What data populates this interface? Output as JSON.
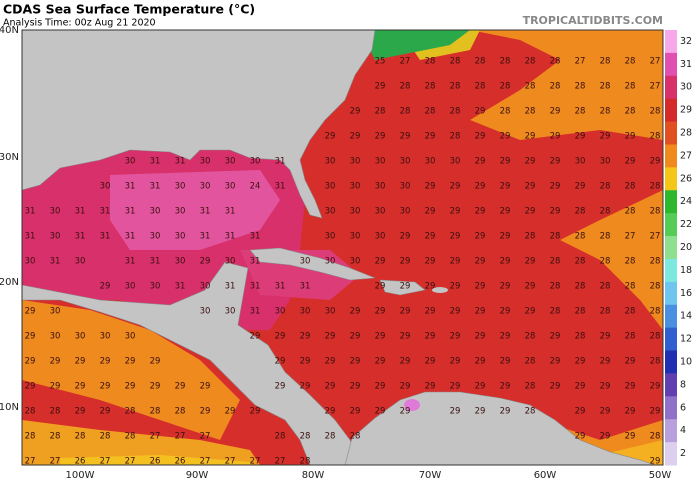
{
  "header": {
    "title": "CDAS Sea Surface Temperature (°C)",
    "subtitle": "Analysis Time: 00z Aug 21 2020",
    "site": "TROPICALTIDBITS.COM"
  },
  "map": {
    "lat_labels": [
      "40N",
      "30N",
      "20N",
      "10N"
    ],
    "lon_labels": [
      "100W",
      "90W",
      "80W",
      "70W",
      "60W",
      "50W"
    ],
    "grid": [
      [
        null,
        null,
        null,
        null,
        null,
        null,
        null,
        null,
        null,
        null,
        null,
        null,
        null,
        null,
        25,
        27,
        28,
        28,
        28,
        28,
        28,
        28,
        27,
        28,
        28,
        27
      ],
      [
        null,
        null,
        null,
        null,
        null,
        null,
        null,
        null,
        null,
        null,
        null,
        null,
        null,
        null,
        29,
        28,
        28,
        28,
        28,
        28,
        28,
        28,
        28,
        28,
        28,
        27
      ],
      [
        null,
        null,
        null,
        null,
        null,
        null,
        null,
        null,
        null,
        null,
        null,
        null,
        null,
        29,
        28,
        28,
        28,
        28,
        29,
        28,
        28,
        29,
        28,
        28,
        28,
        28
      ],
      [
        null,
        null,
        null,
        null,
        null,
        null,
        null,
        null,
        null,
        null,
        null,
        null,
        29,
        29,
        29,
        29,
        29,
        28,
        29,
        29,
        29,
        29,
        29,
        29,
        29,
        28
      ],
      [
        null,
        null,
        null,
        null,
        30,
        31,
        31,
        30,
        30,
        30,
        31,
        null,
        30,
        30,
        30,
        30,
        30,
        30,
        29,
        29,
        29,
        29,
        30,
        30,
        29,
        29
      ],
      [
        null,
        null,
        null,
        30,
        31,
        31,
        30,
        30,
        30,
        24,
        31,
        null,
        30,
        30,
        30,
        30,
        29,
        29,
        29,
        29,
        29,
        29,
        29,
        28,
        28,
        28
      ],
      [
        31,
        30,
        31,
        31,
        31,
        30,
        30,
        31,
        31,
        null,
        null,
        null,
        30,
        30,
        30,
        30,
        29,
        29,
        29,
        29,
        29,
        29,
        28,
        28,
        28,
        28
      ],
      [
        31,
        30,
        31,
        31,
        31,
        30,
        30,
        31,
        31,
        31,
        null,
        null,
        30,
        30,
        30,
        29,
        29,
        29,
        29,
        29,
        28,
        28,
        28,
        28,
        27,
        27
      ],
      [
        30,
        31,
        30,
        null,
        31,
        31,
        30,
        29,
        30,
        31,
        null,
        30,
        30,
        30,
        29,
        29,
        29,
        29,
        29,
        29,
        29,
        28,
        28,
        28,
        28,
        28
      ],
      [
        null,
        null,
        null,
        29,
        30,
        30,
        31,
        30,
        31,
        31,
        31,
        31,
        null,
        null,
        29,
        29,
        29,
        29,
        29,
        29,
        29,
        28,
        28,
        28,
        28,
        28
      ],
      [
        29,
        30,
        null,
        null,
        null,
        null,
        null,
        30,
        30,
        31,
        30,
        30,
        30,
        29,
        29,
        29,
        29,
        29,
        29,
        29,
        29,
        28,
        28,
        28,
        28,
        28
      ],
      [
        29,
        30,
        30,
        30,
        30,
        null,
        null,
        null,
        null,
        29,
        29,
        29,
        29,
        29,
        29,
        29,
        29,
        29,
        29,
        29,
        28,
        29,
        28,
        29,
        28,
        28
      ],
      [
        29,
        29,
        29,
        29,
        29,
        29,
        null,
        null,
        null,
        null,
        29,
        29,
        29,
        29,
        29,
        29,
        29,
        29,
        29,
        29,
        28,
        29,
        29,
        29,
        29,
        28
      ],
      [
        29,
        29,
        29,
        29,
        29,
        29,
        29,
        29,
        null,
        null,
        29,
        29,
        29,
        29,
        29,
        29,
        29,
        29,
        29,
        29,
        28,
        29,
        29,
        29,
        29,
        29
      ],
      [
        28,
        28,
        29,
        29,
        28,
        28,
        28,
        29,
        29,
        29,
        null,
        null,
        29,
        29,
        29,
        29,
        null,
        29,
        29,
        29,
        28,
        null,
        29,
        29,
        29,
        29
      ],
      [
        28,
        28,
        28,
        28,
        28,
        27,
        27,
        27,
        null,
        null,
        28,
        28,
        28,
        28,
        null,
        null,
        null,
        null,
        null,
        null,
        null,
        null,
        29,
        29,
        29,
        28
      ],
      [
        27,
        27,
        26,
        27,
        27,
        26,
        26,
        27,
        27,
        27,
        27,
        28,
        null,
        null,
        null,
        null,
        null,
        null,
        null,
        null,
        null,
        null,
        null,
        null,
        null,
        29
      ]
    ]
  },
  "colorbar": {
    "labels": [
      32,
      31,
      30,
      29,
      28,
      27,
      26,
      24,
      22,
      20,
      18,
      16,
      14,
      12,
      10,
      8,
      6,
      4,
      2
    ],
    "colors": [
      "#f7a8e8",
      "#e050b0",
      "#d8306a",
      "#d42a2a",
      "#e05020",
      "#f08a1c",
      "#f5c518",
      "#2eb82e",
      "#55cc55",
      "#8ee08e",
      "#7de8e0",
      "#6ec6f0",
      "#4a90e0",
      "#3060d0",
      "#2030b0",
      "#6040b0",
      "#9070c8",
      "#b8a0dc",
      "#dcd0ee"
    ]
  }
}
